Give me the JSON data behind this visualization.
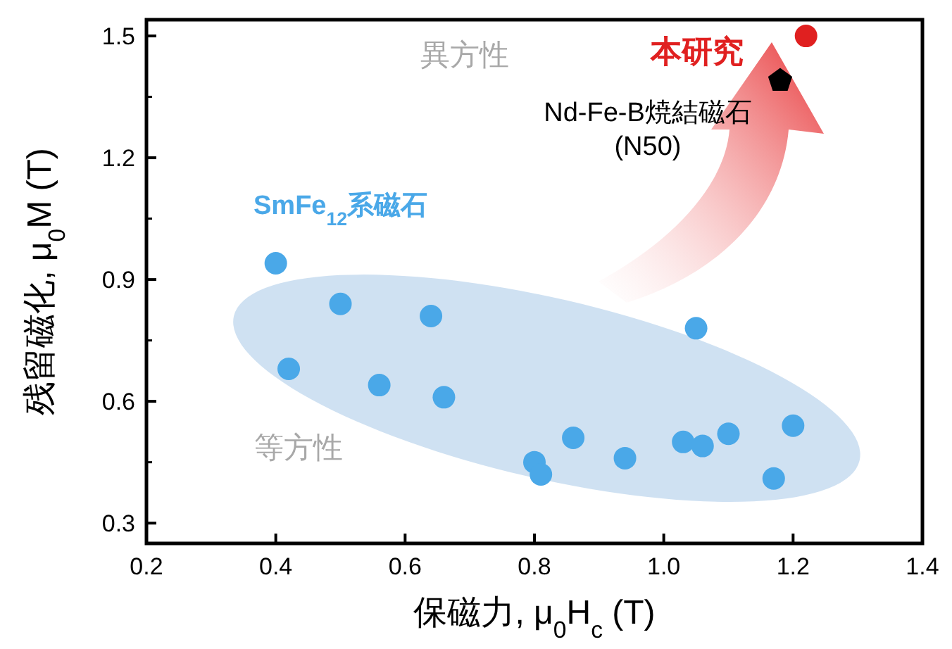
{
  "chart_data": {
    "type": "scatter",
    "xlabel": "保磁力, μ$_{0}$H$_{c}$ (T)",
    "ylabel": "残留磁化, μ$_{0}$M (T)",
    "xlim": [
      0.2,
      1.4
    ],
    "ylim": [
      0.25,
      1.54
    ],
    "xticks": [
      0.2,
      0.4,
      0.6,
      0.8,
      {
        "value": 1,
        "label": "1.0"
      },
      1.2,
      1.4
    ],
    "yticks": [
      0.3,
      0.6,
      0.9,
      1.2,
      1.5
    ],
    "grid": false,
    "series": [
      {
        "name": "SmFe$_{12}$系磁石",
        "color": "#4aa8e8",
        "marker": "circle",
        "x": [
          0.4,
          0.5,
          0.64,
          0.42,
          0.56,
          0.66,
          1.05,
          0.86,
          0.8,
          0.81,
          0.94,
          1.03,
          1.06,
          1.1,
          1.2,
          1.17
        ],
        "values": [
          0.94,
          0.84,
          0.81,
          0.68,
          0.64,
          0.61,
          0.78,
          0.51,
          0.45,
          0.42,
          0.46,
          0.5,
          0.49,
          0.52,
          0.54,
          0.41
        ]
      },
      {
        "name": "本研究",
        "color": "#e02020",
        "marker": "circle",
        "x": [
          1.22
        ],
        "values": [
          1.5
        ]
      },
      {
        "name": "Nd-Fe-B焼結磁石\n(N50)",
        "color": "#000000",
        "x": [
          1.18
        ],
        "values": [
          1.39
        ]
      }
    ],
    "annotations": [
      "異方性",
      "等方性"
    ]
  }
}
